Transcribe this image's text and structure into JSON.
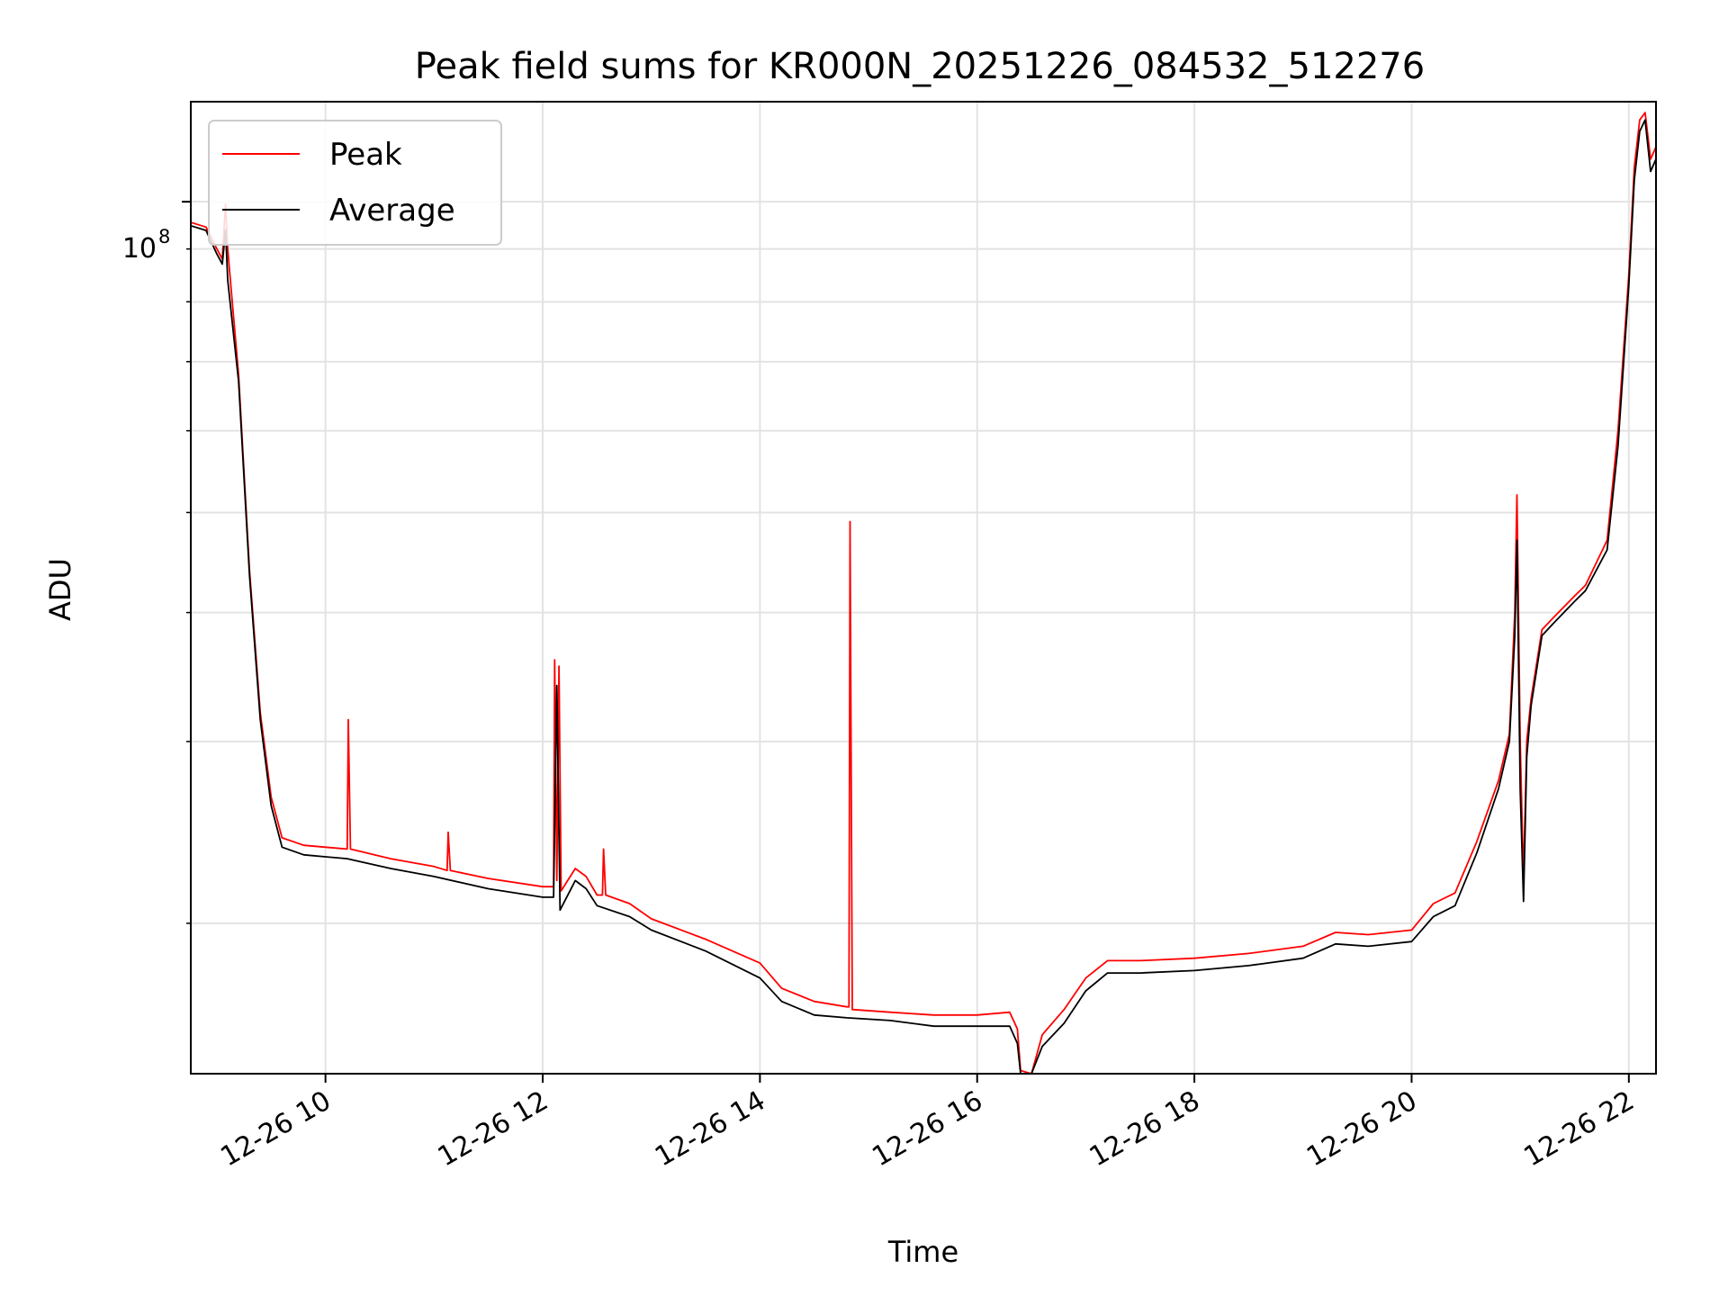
{
  "chart_data": {
    "type": "line",
    "title": "Peak field sums for KR000N_20251226_084532_512276",
    "xlabel": "Time",
    "ylabel": "ADU",
    "yscale": "log",
    "xlim": [
      8.76,
      22.25
    ],
    "ylim": [
      14300000,
      125000000
    ],
    "grid": true,
    "x_ticks": [
      10,
      12,
      14,
      16,
      18,
      20,
      22
    ],
    "x_tick_labels": [
      "12-26 10",
      "12-26 12",
      "12-26 14",
      "12-26 16",
      "12-26 18",
      "12-26 20",
      "12-26 22"
    ],
    "y_major_ticks": [
      100000000
    ],
    "y_major_tick_labels": [
      "10",
      "8"
    ],
    "y_minor_ticks": [
      20000000,
      30000000,
      40000000,
      50000000,
      60000000,
      70000000,
      80000000,
      90000000
    ],
    "legend": {
      "position": "upper-left",
      "entries": [
        {
          "label": "Peak",
          "color": "#ff0000"
        },
        {
          "label": "Average",
          "color": "#000000"
        }
      ]
    },
    "series": [
      {
        "name": "Peak",
        "color": "#ff0000",
        "points": [
          [
            8.76,
            95500000
          ],
          [
            8.9,
            94500000
          ],
          [
            9.0,
            90000000
          ],
          [
            9.05,
            88000000
          ],
          [
            9.08,
            99500000
          ],
          [
            9.1,
            90000000
          ],
          [
            9.2,
            68000000
          ],
          [
            9.3,
            44000000
          ],
          [
            9.4,
            32000000
          ],
          [
            9.5,
            26500000
          ],
          [
            9.6,
            24200000
          ],
          [
            9.8,
            23800000
          ],
          [
            10.0,
            23700000
          ],
          [
            10.2,
            23600000
          ],
          [
            10.21,
            31500000
          ],
          [
            10.23,
            23600000
          ],
          [
            10.6,
            23100000
          ],
          [
            11.0,
            22700000
          ],
          [
            11.12,
            22500000
          ],
          [
            11.13,
            24500000
          ],
          [
            11.15,
            22500000
          ],
          [
            11.5,
            22100000
          ],
          [
            12.0,
            21700000
          ],
          [
            12.1,
            21700000
          ],
          [
            12.11,
            36000000
          ],
          [
            12.13,
            22000000
          ],
          [
            12.15,
            35500000
          ],
          [
            12.17,
            21500000
          ],
          [
            12.3,
            22600000
          ],
          [
            12.4,
            22200000
          ],
          [
            12.5,
            21300000
          ],
          [
            12.55,
            21300000
          ],
          [
            12.56,
            23600000
          ],
          [
            12.58,
            21300000
          ],
          [
            12.8,
            20900000
          ],
          [
            13.0,
            20200000
          ],
          [
            13.5,
            19300000
          ],
          [
            14.0,
            18300000
          ],
          [
            14.2,
            17300000
          ],
          [
            14.5,
            16800000
          ],
          [
            14.8,
            16600000
          ],
          [
            14.82,
            16600000
          ],
          [
            14.83,
            49000000
          ],
          [
            14.85,
            16500000
          ],
          [
            15.2,
            16400000
          ],
          [
            15.6,
            16300000
          ],
          [
            16.0,
            16300000
          ],
          [
            16.3,
            16400000
          ],
          [
            16.37,
            15800000
          ],
          [
            16.4,
            14400000
          ],
          [
            16.5,
            14300000
          ],
          [
            16.6,
            15600000
          ],
          [
            16.8,
            16500000
          ],
          [
            17.0,
            17700000
          ],
          [
            17.2,
            18400000
          ],
          [
            17.5,
            18400000
          ],
          [
            18.0,
            18500000
          ],
          [
            18.5,
            18700000
          ],
          [
            19.0,
            19000000
          ],
          [
            19.3,
            19600000
          ],
          [
            19.6,
            19500000
          ],
          [
            20.0,
            19700000
          ],
          [
            20.2,
            20900000
          ],
          [
            20.4,
            21400000
          ],
          [
            20.6,
            24000000
          ],
          [
            20.8,
            27500000
          ],
          [
            20.9,
            30500000
          ],
          [
            20.95,
            40000000
          ],
          [
            20.97,
            52000000
          ],
          [
            21.0,
            30000000
          ],
          [
            21.03,
            22000000
          ],
          [
            21.06,
            30000000
          ],
          [
            21.1,
            33000000
          ],
          [
            21.2,
            38500000
          ],
          [
            21.3,
            39500000
          ],
          [
            21.5,
            41500000
          ],
          [
            21.6,
            42500000
          ],
          [
            21.8,
            47000000
          ],
          [
            21.9,
            60000000
          ],
          [
            22.0,
            85000000
          ],
          [
            22.05,
            108000000
          ],
          [
            22.1,
            120000000
          ],
          [
            22.15,
            122000000
          ],
          [
            22.2,
            110000000
          ],
          [
            22.25,
            113000000
          ]
        ]
      },
      {
        "name": "Average",
        "color": "#000000",
        "points": [
          [
            8.76,
            94800000
          ],
          [
            8.9,
            93800000
          ],
          [
            9.0,
            89000000
          ],
          [
            9.05,
            87000000
          ],
          [
            9.08,
            94000000
          ],
          [
            9.1,
            84000000
          ],
          [
            9.2,
            67000000
          ],
          [
            9.3,
            43500000
          ],
          [
            9.4,
            31500000
          ],
          [
            9.5,
            26000000
          ],
          [
            9.6,
            23700000
          ],
          [
            9.8,
            23300000
          ],
          [
            10.0,
            23200000
          ],
          [
            10.2,
            23100000
          ],
          [
            10.6,
            22600000
          ],
          [
            11.0,
            22200000
          ],
          [
            11.5,
            21600000
          ],
          [
            12.0,
            21200000
          ],
          [
            12.1,
            21200000
          ],
          [
            12.13,
            34000000
          ],
          [
            12.16,
            20600000
          ],
          [
            12.3,
            22000000
          ],
          [
            12.4,
            21600000
          ],
          [
            12.5,
            20800000
          ],
          [
            12.8,
            20300000
          ],
          [
            13.0,
            19700000
          ],
          [
            13.5,
            18800000
          ],
          [
            14.0,
            17700000
          ],
          [
            14.2,
            16800000
          ],
          [
            14.5,
            16300000
          ],
          [
            14.8,
            16200000
          ],
          [
            15.2,
            16100000
          ],
          [
            15.6,
            15900000
          ],
          [
            16.0,
            15900000
          ],
          [
            16.3,
            15900000
          ],
          [
            16.37,
            15300000
          ],
          [
            16.4,
            14300000
          ],
          [
            16.5,
            14300000
          ],
          [
            16.6,
            15200000
          ],
          [
            16.8,
            16000000
          ],
          [
            17.0,
            17200000
          ],
          [
            17.2,
            17900000
          ],
          [
            17.5,
            17900000
          ],
          [
            18.0,
            18000000
          ],
          [
            18.5,
            18200000
          ],
          [
            19.0,
            18500000
          ],
          [
            19.3,
            19100000
          ],
          [
            19.6,
            19000000
          ],
          [
            20.0,
            19200000
          ],
          [
            20.2,
            20300000
          ],
          [
            20.4,
            20800000
          ],
          [
            20.6,
            23400000
          ],
          [
            20.8,
            27000000
          ],
          [
            20.9,
            30000000
          ],
          [
            20.95,
            38000000
          ],
          [
            20.97,
            47000000
          ],
          [
            21.0,
            27000000
          ],
          [
            21.03,
            21000000
          ],
          [
            21.06,
            29000000
          ],
          [
            21.1,
            32500000
          ],
          [
            21.2,
            38000000
          ],
          [
            21.3,
            39000000
          ],
          [
            21.5,
            41000000
          ],
          [
            21.6,
            42000000
          ],
          [
            21.8,
            46000000
          ],
          [
            21.9,
            58000000
          ],
          [
            22.0,
            83000000
          ],
          [
            22.05,
            105000000
          ],
          [
            22.1,
            117000000
          ],
          [
            22.15,
            120000000
          ],
          [
            22.2,
            107000000
          ],
          [
            22.25,
            110000000
          ]
        ]
      }
    ]
  }
}
